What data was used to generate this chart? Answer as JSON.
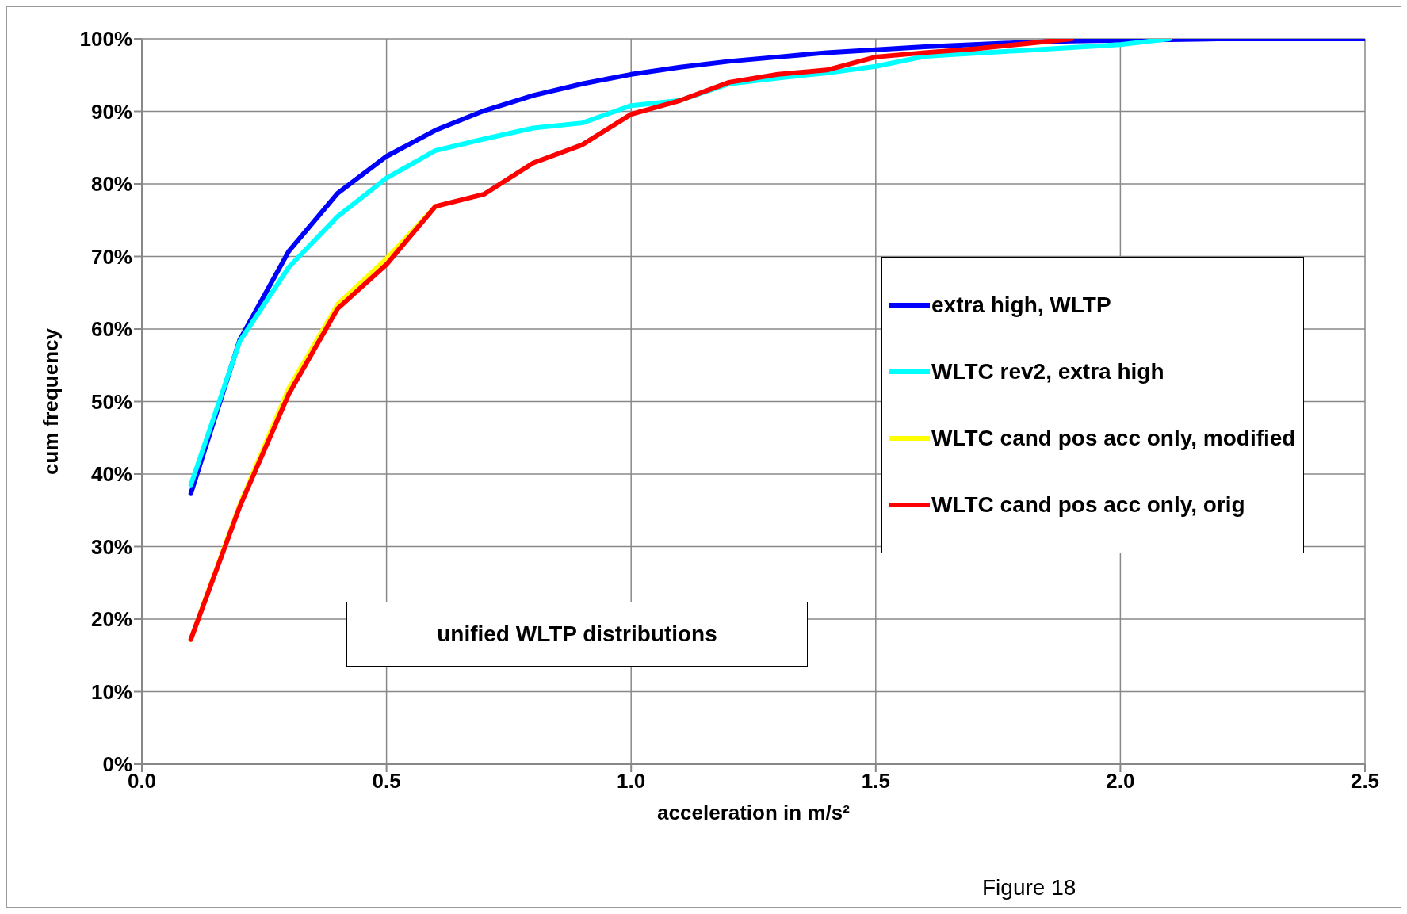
{
  "chart_data": {
    "type": "line",
    "xlabel": "acceleration in m/s²",
    "ylabel": "cum frequency",
    "annotations": [
      "unified WLTP distributions",
      "Figure 18"
    ],
    "series": [
      {
        "name": "extra high, WLTP",
        "color": "#0000ff",
        "x": [
          0.1,
          0.2,
          0.3,
          0.4,
          0.5,
          0.6,
          0.7,
          0.8,
          0.9,
          1.0,
          1.1,
          1.2,
          1.3,
          1.4,
          1.5,
          1.6,
          1.7,
          1.8,
          1.9,
          2.0,
          2.1,
          2.2,
          2.3,
          2.4,
          2.5
        ],
        "values": [
          37.3,
          58.5,
          70.7,
          78.7,
          83.8,
          87.4,
          90.1,
          92.2,
          93.8,
          95.1,
          96.1,
          96.9,
          97.5,
          98.1,
          98.5,
          98.9,
          99.2,
          99.5,
          99.7,
          99.8,
          99.9,
          100,
          100,
          100,
          100
        ]
      },
      {
        "name": "WLTC rev2, extra high",
        "color": "#00ffff",
        "x": [
          0.1,
          0.2,
          0.3,
          0.4,
          0.5,
          0.6,
          0.7,
          0.8,
          0.9,
          1.0,
          1.1,
          1.2,
          1.3,
          1.4,
          1.5,
          1.6,
          1.7,
          1.8,
          1.9,
          2.0,
          2.1
        ],
        "values": [
          38.5,
          58.3,
          68.5,
          75.5,
          80.8,
          84.6,
          86.2,
          87.7,
          88.4,
          90.8,
          91.5,
          93.8,
          94.6,
          95.3,
          96.2,
          97.6,
          98.0,
          98.4,
          98.8,
          99.2,
          100
        ]
      },
      {
        "name": "WLTC cand pos acc only, modified",
        "color": "#ffff00",
        "x": [
          0.1,
          0.2,
          0.3,
          0.4,
          0.5,
          0.6
        ],
        "values": [
          17.2,
          35.8,
          51.8,
          63.4,
          69.7,
          76.9
        ]
      },
      {
        "name": "WLTC cand pos acc only, orig",
        "color": "#ff0000",
        "x": [
          0.1,
          0.2,
          0.3,
          0.4,
          0.5,
          0.6,
          0.7,
          0.8,
          0.9,
          1.0,
          1.1,
          1.2,
          1.3,
          1.4,
          1.5,
          1.6,
          1.7,
          1.8,
          1.9
        ],
        "values": [
          17.2,
          35.5,
          51.0,
          62.8,
          68.9,
          76.9,
          78.6,
          82.9,
          85.4,
          89.6,
          91.5,
          94.0,
          95.1,
          95.7,
          97.5,
          98.1,
          98.6,
          99.3,
          100
        ]
      }
    ],
    "xlim": [
      0,
      2.5
    ],
    "xticks": [
      {
        "value": 0,
        "label": "0.0"
      },
      0.5,
      {
        "value": 1,
        "label": "1.0"
      },
      1.5,
      {
        "value": 2,
        "label": "2.0"
      },
      2.5
    ],
    "ylim": [
      0,
      100
    ],
    "yticks": [
      {
        "value": 0,
        "label": "0%"
      },
      {
        "value": 10,
        "label": "10%"
      },
      {
        "value": 20,
        "label": "20%"
      },
      {
        "value": 30,
        "label": "30%"
      },
      {
        "value": 40,
        "label": "40%"
      },
      {
        "value": 50,
        "label": "50%"
      },
      {
        "value": 60,
        "label": "60%"
      },
      {
        "value": 70,
        "label": "70%"
      },
      {
        "value": 80,
        "label": "80%"
      },
      {
        "value": 90,
        "label": "90%"
      },
      {
        "value": 100,
        "label": "100%"
      }
    ],
    "grid": true,
    "legend": "right",
    "marker": "none",
    "line_style": "solid"
  }
}
